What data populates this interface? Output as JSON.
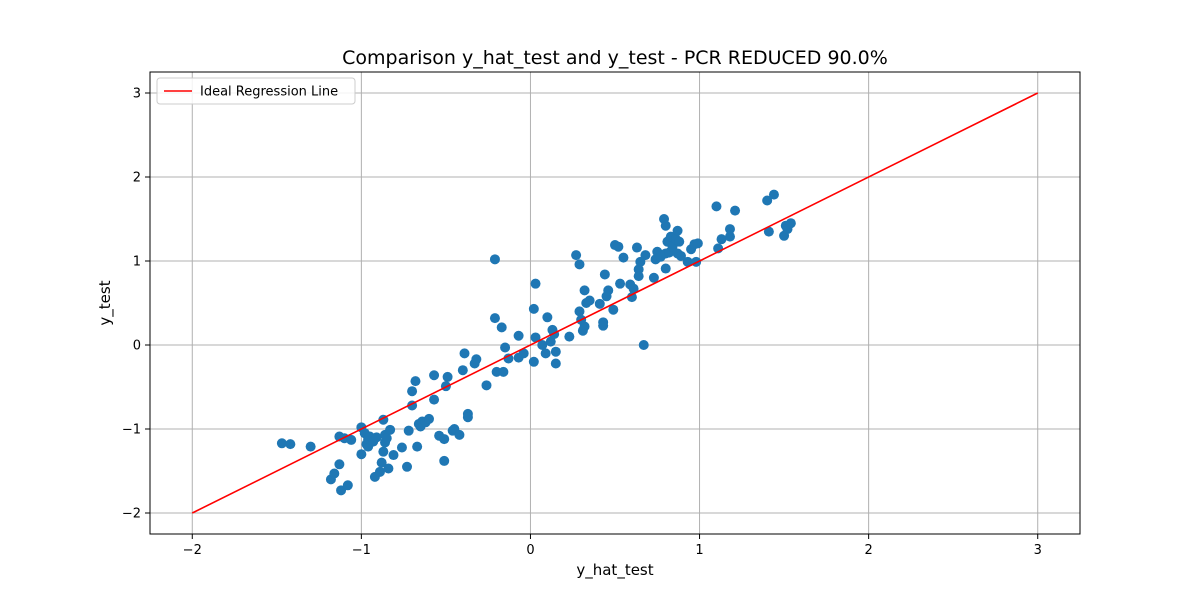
{
  "chart_data": {
    "type": "scatter",
    "title": "Comparison y_hat_test and y_test - PCR REDUCED 90.0%",
    "xlabel": "y_hat_test",
    "ylabel": "y_test",
    "xlim": [
      -2.25,
      3.25
    ],
    "ylim": [
      -2.25,
      3.25
    ],
    "xticks": [
      -2,
      -1,
      0,
      1,
      2,
      3
    ],
    "yticks": [
      -2,
      -1,
      0,
      1,
      2,
      3
    ],
    "x_tick_labels": [
      "−2",
      "−1",
      "0",
      "1",
      "2",
      "3"
    ],
    "y_tick_labels": [
      "−2",
      "−1",
      "0",
      "1",
      "2",
      "3"
    ],
    "grid": true,
    "legend": {
      "position": "top-left",
      "entries": [
        "Ideal Regression Line"
      ]
    },
    "colors": {
      "points": "#1f77b4",
      "line": "#ff0000",
      "grid": "#b0b0b0"
    },
    "series": [
      {
        "type": "scatter",
        "points": [
          [
            -1.47,
            -1.17
          ],
          [
            -1.42,
            -1.18
          ],
          [
            -1.3,
            -1.21
          ],
          [
            -1.18,
            -1.6
          ],
          [
            -1.16,
            -1.53
          ],
          [
            -1.13,
            -1.09
          ],
          [
            -1.13,
            -1.42
          ],
          [
            -1.12,
            -1.73
          ],
          [
            -1.1,
            -1.11
          ],
          [
            -1.08,
            -1.67
          ],
          [
            -1.06,
            -1.13
          ],
          [
            -1.0,
            -1.3
          ],
          [
            -1.0,
            -0.98
          ],
          [
            -0.98,
            -1.05
          ],
          [
            -0.97,
            -1.18
          ],
          [
            -0.96,
            -1.21
          ],
          [
            -0.96,
            -1.12
          ],
          [
            -0.95,
            -1.09
          ],
          [
            -0.93,
            -1.15
          ],
          [
            -0.92,
            -1.57
          ],
          [
            -0.91,
            -1.1
          ],
          [
            -0.89,
            -1.51
          ],
          [
            -0.88,
            -1.4
          ],
          [
            -0.87,
            -1.27
          ],
          [
            -0.87,
            -0.89
          ],
          [
            -0.86,
            -1.07
          ],
          [
            -0.86,
            -1.16
          ],
          [
            -0.85,
            -1.11
          ],
          [
            -0.84,
            -1.47
          ],
          [
            -0.83,
            -1.01
          ],
          [
            -0.81,
            -1.31
          ],
          [
            -0.76,
            -1.22
          ],
          [
            -0.73,
            -1.45
          ],
          [
            -0.72,
            -1.02
          ],
          [
            -0.7,
            -0.72
          ],
          [
            -0.7,
            -0.55
          ],
          [
            -0.68,
            -0.43
          ],
          [
            -0.67,
            -1.21
          ],
          [
            -0.66,
            -0.94
          ],
          [
            -0.65,
            -0.97
          ],
          [
            -0.64,
            -0.91
          ],
          [
            -0.62,
            -0.92
          ],
          [
            -0.6,
            -0.88
          ],
          [
            -0.57,
            -0.36
          ],
          [
            -0.57,
            -0.65
          ],
          [
            -0.54,
            -1.08
          ],
          [
            -0.51,
            -1.38
          ],
          [
            -0.51,
            -1.12
          ],
          [
            -0.5,
            -0.49
          ],
          [
            -0.49,
            -0.38
          ],
          [
            -0.46,
            -1.02
          ],
          [
            -0.45,
            -1.0
          ],
          [
            -0.42,
            -1.07
          ],
          [
            -0.4,
            -0.3
          ],
          [
            -0.39,
            -0.1
          ],
          [
            -0.37,
            -0.82
          ],
          [
            -0.37,
            -0.86
          ],
          [
            -0.33,
            -0.22
          ],
          [
            -0.32,
            -0.17
          ],
          [
            -0.26,
            -0.48
          ],
          [
            -0.21,
            0.32
          ],
          [
            -0.21,
            1.02
          ],
          [
            -0.2,
            -0.32
          ],
          [
            -0.17,
            0.21
          ],
          [
            -0.16,
            -0.32
          ],
          [
            -0.15,
            -0.03
          ],
          [
            -0.13,
            -0.16
          ],
          [
            -0.07,
            0.11
          ],
          [
            -0.07,
            -0.15
          ],
          [
            -0.04,
            -0.1
          ],
          [
            0.02,
            0.43
          ],
          [
            0.02,
            -0.2
          ],
          [
            0.03,
            0.73
          ],
          [
            0.03,
            0.09
          ],
          [
            0.07,
            0.0
          ],
          [
            0.09,
            -0.1
          ],
          [
            0.1,
            0.33
          ],
          [
            0.12,
            0.04
          ],
          [
            0.13,
            0.18
          ],
          [
            0.14,
            0.13
          ],
          [
            0.15,
            -0.08
          ],
          [
            0.15,
            -0.22
          ],
          [
            0.23,
            0.1
          ],
          [
            0.27,
            1.07
          ],
          [
            0.29,
            0.96
          ],
          [
            0.29,
            0.4
          ],
          [
            0.3,
            0.3
          ],
          [
            0.31,
            0.17
          ],
          [
            0.32,
            0.65
          ],
          [
            0.32,
            0.22
          ],
          [
            0.33,
            0.5
          ],
          [
            0.35,
            0.53
          ],
          [
            0.41,
            0.49
          ],
          [
            0.43,
            0.27
          ],
          [
            0.43,
            0.23
          ],
          [
            0.44,
            0.84
          ],
          [
            0.45,
            0.58
          ],
          [
            0.46,
            0.65
          ],
          [
            0.49,
            0.42
          ],
          [
            0.5,
            1.19
          ],
          [
            0.52,
            1.17
          ],
          [
            0.53,
            0.73
          ],
          [
            0.55,
            1.04
          ],
          [
            0.59,
            0.72
          ],
          [
            0.6,
            0.57
          ],
          [
            0.61,
            0.67
          ],
          [
            0.63,
            1.16
          ],
          [
            0.64,
            0.9
          ],
          [
            0.64,
            0.82
          ],
          [
            0.65,
            0.99
          ],
          [
            0.67,
            0.0
          ],
          [
            0.68,
            1.07
          ],
          [
            0.73,
            0.8
          ],
          [
            0.74,
            1.02
          ],
          [
            0.75,
            1.11
          ],
          [
            0.77,
            1.05
          ],
          [
            0.79,
            1.5
          ],
          [
            0.8,
            1.42
          ],
          [
            0.8,
            0.91
          ],
          [
            0.8,
            1.09
          ],
          [
            0.81,
            1.23
          ],
          [
            0.82,
            1.1
          ],
          [
            0.83,
            1.29
          ],
          [
            0.84,
            1.17
          ],
          [
            0.86,
            1.26
          ],
          [
            0.87,
            1.36
          ],
          [
            0.87,
            1.09
          ],
          [
            0.88,
            1.23
          ],
          [
            0.89,
            1.06
          ],
          [
            0.93,
            0.99
          ],
          [
            0.95,
            1.14
          ],
          [
            0.97,
            1.2
          ],
          [
            0.98,
            0.99
          ],
          [
            0.99,
            1.21
          ],
          [
            1.1,
            1.65
          ],
          [
            1.11,
            1.15
          ],
          [
            1.13,
            1.26
          ],
          [
            1.18,
            1.29
          ],
          [
            1.18,
            1.38
          ],
          [
            1.21,
            1.6
          ],
          [
            1.4,
            1.72
          ],
          [
            1.41,
            1.35
          ],
          [
            1.44,
            1.79
          ],
          [
            1.5,
            1.3
          ],
          [
            1.51,
            1.42
          ],
          [
            1.52,
            1.38
          ],
          [
            1.54,
            1.45
          ]
        ]
      },
      {
        "type": "line",
        "name": "Ideal Regression Line",
        "points": [
          [
            -2,
            -2
          ],
          [
            3,
            3
          ]
        ]
      }
    ]
  }
}
